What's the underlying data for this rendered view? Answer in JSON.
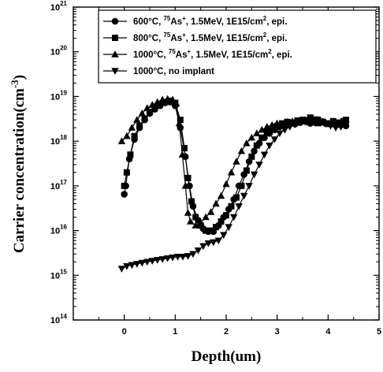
{
  "chart_data": {
    "type": "scatter",
    "xlabel": "Depth(um)",
    "ylabel": "Carrier concentration(cm",
    "ylabel_exp": "-3",
    "ylabel_close": ")",
    "xlim": [
      -1,
      5
    ],
    "ylim_log10": [
      14,
      21
    ],
    "log_y": true,
    "x_ticks": [
      "0",
      "1",
      "2",
      "3",
      "4",
      "5"
    ],
    "y_ticks_exp": [
      "14",
      "15",
      "16",
      "17",
      "18",
      "19",
      "20",
      "21"
    ],
    "y_tick_base": "10",
    "legend_position": "top-right",
    "series": [
      {
        "name": "600°C, 75As+, 1.5MeV, 1E15/cm2, epi.",
        "legend": [
          "600°C, ",
          "75",
          "As",
          "+",
          ", 1.5MeV, 1E15/cm",
          "2",
          ", epi."
        ],
        "marker": "circle",
        "points": [
          [
            0.0,
            6.5e+16
          ],
          [
            0.03,
            1e+17
          ],
          [
            0.1,
            4e+17
          ],
          [
            0.2,
            1.1e+18
          ],
          [
            0.3,
            2e+18
          ],
          [
            0.4,
            3e+18
          ],
          [
            0.5,
            4.2e+18
          ],
          [
            0.6,
            5.2e+18
          ],
          [
            0.7,
            6.2e+18
          ],
          [
            0.8,
            7.2e+18
          ],
          [
            0.9,
            7.5e+18
          ],
          [
            1.0,
            6.2e+18
          ],
          [
            1.1,
            2e+18
          ],
          [
            1.2,
            4.5e+17
          ],
          [
            1.28,
            1e+17
          ],
          [
            1.35,
            3.5e+16
          ],
          [
            1.45,
            1.7e+16
          ],
          [
            1.55,
            1.1e+16
          ],
          [
            1.65,
            9500000000000000.0
          ],
          [
            1.75,
            9500000000000000.0
          ],
          [
            1.85,
            1.3e+16
          ],
          [
            1.95,
            2e+16
          ],
          [
            2.05,
            3e+16
          ],
          [
            2.15,
            5e+16
          ],
          [
            2.25,
            1e+17
          ],
          [
            2.35,
            1.8e+17
          ],
          [
            2.45,
            3.5e+17
          ],
          [
            2.55,
            6e+17
          ],
          [
            2.65,
            9e+17
          ],
          [
            2.75,
            1.2e+18
          ],
          [
            2.85,
            1.5e+18
          ],
          [
            2.95,
            1.8e+18
          ],
          [
            3.05,
            2.1e+18
          ],
          [
            3.15,
            2.3e+18
          ],
          [
            3.25,
            2.5e+18
          ],
          [
            3.35,
            2.4e+18
          ],
          [
            3.45,
            2.6e+18
          ],
          [
            3.55,
            2.8e+18
          ],
          [
            3.65,
            2.5e+18
          ],
          [
            3.75,
            2.6e+18
          ],
          [
            3.85,
            2.7e+18
          ],
          [
            3.95,
            2.5e+18
          ],
          [
            4.05,
            2.4e+18
          ],
          [
            4.15,
            2.6e+18
          ],
          [
            4.25,
            2.3e+18
          ],
          [
            4.35,
            2.2e+18
          ]
        ]
      },
      {
        "name": "800°C, 75As+, 1.5MeV, 1E15/cm2, epi.",
        "legend": [
          "800°C, ",
          "75",
          "As",
          "+",
          ", 1.5MeV, 1E15/cm",
          "2",
          ", epi."
        ],
        "marker": "square",
        "points": [
          [
            0.0,
            1e+17
          ],
          [
            0.05,
            2e+17
          ],
          [
            0.12,
            5e+17
          ],
          [
            0.2,
            1.3e+18
          ],
          [
            0.3,
            2.2e+18
          ],
          [
            0.4,
            3.2e+18
          ],
          [
            0.5,
            4.5e+18
          ],
          [
            0.6,
            5.5e+18
          ],
          [
            0.7,
            6.5e+18
          ],
          [
            0.8,
            7.5e+18
          ],
          [
            0.9,
            8e+18
          ],
          [
            1.0,
            7.2e+18
          ],
          [
            1.1,
            3e+18
          ],
          [
            1.18,
            7e+17
          ],
          [
            1.25,
            1.5e+17
          ],
          [
            1.32,
            4.5e+16
          ],
          [
            1.4,
            2e+16
          ],
          [
            1.5,
            1.3e+16
          ],
          [
            1.6,
            1e+16
          ],
          [
            1.7,
            1e+16
          ],
          [
            1.8,
            1.2e+16
          ],
          [
            1.9,
            1.6e+16
          ],
          [
            2.0,
            2.2e+16
          ],
          [
            2.1,
            3.5e+16
          ],
          [
            2.2,
            5.5e+16
          ],
          [
            2.3,
            1e+17
          ],
          [
            2.4,
            2.2e+17
          ],
          [
            2.5,
            4.5e+17
          ],
          [
            2.6,
            8e+17
          ],
          [
            2.7,
            1.2e+18
          ],
          [
            2.8,
            1.6e+18
          ],
          [
            2.9,
            1.9e+18
          ],
          [
            3.0,
            2.2e+18
          ],
          [
            3.1,
            2.5e+18
          ],
          [
            3.2,
            2.7e+18
          ],
          [
            3.3,
            2.6e+18
          ],
          [
            3.4,
            2.9e+18
          ],
          [
            3.5,
            3e+18
          ],
          [
            3.6,
            2.7e+18
          ],
          [
            3.7,
            2.9e+18
          ],
          [
            3.8,
            3e+18
          ],
          [
            3.9,
            2.7e+18
          ],
          [
            4.0,
            2.5e+18
          ],
          [
            4.1,
            2.8e+18
          ],
          [
            4.2,
            2.6e+18
          ],
          [
            4.3,
            2.8e+18
          ],
          [
            4.35,
            3e+18
          ]
        ]
      },
      {
        "name": "1000°C, 75As+, 1.5MeV, 1E15/cm2, epi.",
        "legend": [
          "1000°C, ",
          "75",
          "As",
          "+",
          ", 1.5MeV, 1E15/cm",
          "2",
          ", epi."
        ],
        "marker": "triangle-up",
        "points": [
          [
            -0.05,
            1e+18
          ],
          [
            0.05,
            1.3e+18
          ],
          [
            0.15,
            2e+18
          ],
          [
            0.25,
            3e+18
          ],
          [
            0.35,
            4.2e+18
          ],
          [
            0.45,
            5.5e+18
          ],
          [
            0.55,
            6.5e+18
          ],
          [
            0.65,
            7.5e+18
          ],
          [
            0.75,
            8.5e+18
          ],
          [
            0.85,
            8.8e+18
          ],
          [
            0.95,
            8.5e+18
          ],
          [
            1.02,
            7e+18
          ],
          [
            1.08,
            2.5e+18
          ],
          [
            1.14,
            5e+17
          ],
          [
            1.2,
            1e+17
          ],
          [
            1.25,
            2.5e+16
          ],
          [
            1.3,
            1.6e+16
          ],
          [
            1.4,
            1.3e+16
          ],
          [
            1.5,
            1.5e+16
          ],
          [
            1.6,
            2e+16
          ],
          [
            1.7,
            2.6e+16
          ],
          [
            1.8,
            4e+16
          ],
          [
            1.9,
            6e+16
          ],
          [
            2.0,
            1.1e+17
          ],
          [
            2.1,
            2e+17
          ],
          [
            2.2,
            3.5e+17
          ],
          [
            2.3,
            6e+17
          ],
          [
            2.4,
            9e+17
          ],
          [
            2.5,
            1.2e+18
          ],
          [
            2.6,
            1.5e+18
          ],
          [
            2.7,
            1.8e+18
          ],
          [
            2.8,
            2.1e+18
          ],
          [
            2.9,
            2.3e+18
          ],
          [
            3.0,
            2.5e+18
          ],
          [
            3.1,
            2.4e+18
          ],
          [
            3.2,
            2.7e+18
          ],
          [
            3.3,
            2.8e+18
          ],
          [
            3.4,
            2.6e+18
          ],
          [
            3.5,
            2.8e+18
          ],
          [
            3.6,
            3e+18
          ],
          [
            3.7,
            2.7e+18
          ],
          [
            3.8,
            2.5e+18
          ],
          [
            3.9,
            2.6e+18
          ],
          [
            4.0,
            2.4e+18
          ],
          [
            4.1,
            2.6e+18
          ],
          [
            4.2,
            2.5e+18
          ],
          [
            4.3,
            2.7e+18
          ]
        ]
      },
      {
        "name": "1000°C, no implant",
        "legend": [
          "1000°C, no implant"
        ],
        "marker": "triangle-down",
        "points": [
          [
            -0.05,
            1400000000000000.0
          ],
          [
            0.05,
            1600000000000000.0
          ],
          [
            0.15,
            1700000000000000.0
          ],
          [
            0.25,
            1800000000000000.0
          ],
          [
            0.35,
            1900000000000000.0
          ],
          [
            0.45,
            2000000000000000.0
          ],
          [
            0.55,
            2100000000000000.0
          ],
          [
            0.65,
            2200000000000000.0
          ],
          [
            0.75,
            2300000000000000.0
          ],
          [
            0.85,
            2400000000000000.0
          ],
          [
            0.95,
            2500000000000000.0
          ],
          [
            1.05,
            2600000000000000.0
          ],
          [
            1.15,
            2600000000000000.0
          ],
          [
            1.25,
            2700000000000000.0
          ],
          [
            1.35,
            3000000000000000.0
          ],
          [
            1.45,
            3600000000000000.0
          ],
          [
            1.55,
            4500000000000000.0
          ],
          [
            1.65,
            5200000000000000.0
          ],
          [
            1.75,
            5500000000000000.0
          ],
          [
            1.85,
            6000000000000000.0
          ],
          [
            1.95,
            8000000000000000.0
          ],
          [
            2.05,
            1.2e+16
          ],
          [
            2.15,
            2e+16
          ],
          [
            2.25,
            3.5e+16
          ],
          [
            2.35,
            6e+16
          ],
          [
            2.45,
            1e+17
          ],
          [
            2.55,
            1.8e+17
          ],
          [
            2.65,
            3e+17
          ],
          [
            2.75,
            5e+17
          ],
          [
            2.85,
            8e+17
          ],
          [
            2.95,
            1.1e+18
          ],
          [
            3.05,
            1.5e+18
          ],
          [
            3.15,
            1.8e+18
          ],
          [
            3.25,
            2.1e+18
          ],
          [
            3.35,
            2.4e+18
          ],
          [
            3.45,
            2.7e+18
          ],
          [
            3.55,
            3e+18
          ],
          [
            3.65,
            3.4e+18
          ],
          [
            3.75,
            3.1e+18
          ],
          [
            3.85,
            2.8e+18
          ],
          [
            3.95,
            2.5e+18
          ],
          [
            4.05,
            2.2e+18
          ],
          [
            4.15,
            2e+18
          ],
          [
            4.25,
            2.1e+18
          ],
          [
            4.35,
            2.3e+18
          ]
        ]
      }
    ]
  }
}
